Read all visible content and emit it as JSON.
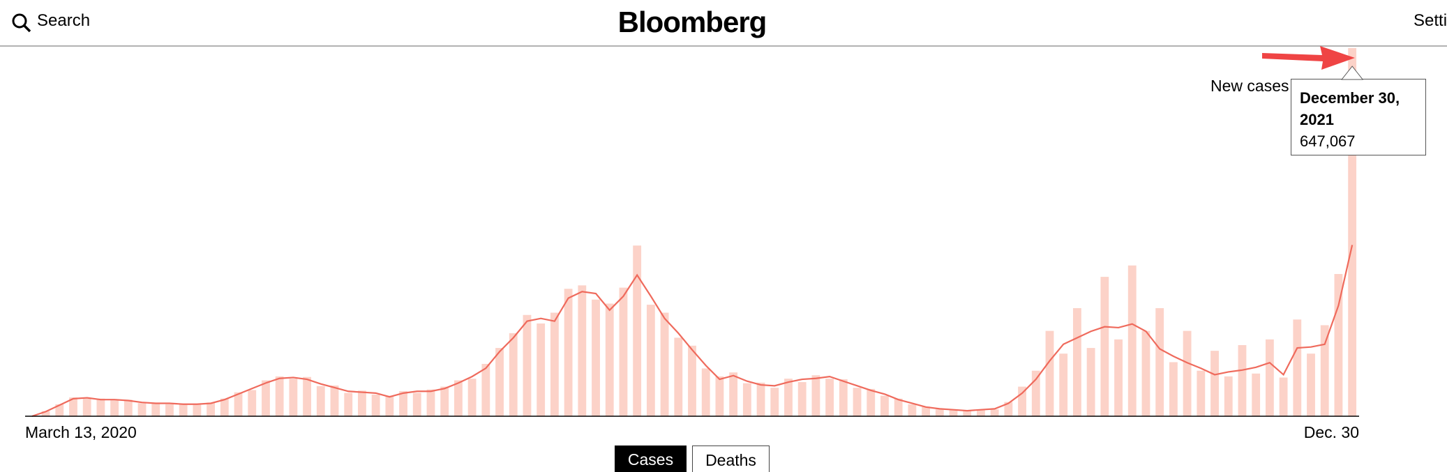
{
  "header": {
    "search": "Search",
    "logo": "Bloomberg",
    "settings": "Settings"
  },
  "chart_data": {
    "type": "bar",
    "categories": [
      "March 13, 2020",
      null,
      null,
      null,
      null,
      null,
      null,
      null,
      null,
      null,
      null,
      null,
      null,
      null,
      null,
      null,
      null,
      null,
      null,
      null,
      null,
      null,
      null,
      null,
      null,
      null,
      null,
      null,
      null,
      null,
      null,
      null,
      null,
      null,
      null,
      null,
      null,
      null,
      null,
      null,
      null,
      null,
      null,
      null,
      null,
      null,
      null,
      null,
      null,
      null,
      null,
      null,
      null,
      null,
      null,
      null,
      null,
      null,
      null,
      null,
      null,
      null,
      null,
      null,
      null,
      null,
      null,
      null,
      null,
      null,
      null,
      null,
      null,
      null,
      null,
      null,
      null,
      null,
      null,
      null,
      null,
      null,
      null,
      null,
      null,
      null,
      null,
      null,
      null,
      null,
      null,
      null,
      null,
      null,
      null,
      null,
      "Dec. 30"
    ],
    "series": [
      {
        "name": "New cases",
        "color": "#fcd2c8",
        "values": [
          0,
          9000,
          21000,
          33000,
          31000,
          31000,
          28000,
          29000,
          23000,
          24000,
          21000,
          22000,
          20000,
          24000,
          31000,
          42000,
          46000,
          63000,
          70000,
          66000,
          69000,
          53000,
          54000,
          41000,
          45000,
          38000,
          36000,
          44000,
          41000,
          47000,
          52000,
          63000,
          66000,
          92000,
          120000,
          146000,
          178000,
          163000,
          182000,
          224000,
          230000,
          205000,
          198000,
          226000,
          300000,
          196000,
          182000,
          138000,
          124000,
          84000,
          70000,
          77000,
          58000,
          59000,
          50000,
          66000,
          60000,
          72000,
          66000,
          65000,
          50000,
          48000,
          36000,
          31000,
          21000,
          17000,
          12000,
          12000,
          9000,
          12000,
          12000,
          25000,
          52000,
          80000,
          150000,
          110000,
          190000,
          120000,
          245000,
          135000,
          265000,
          150000,
          190000,
          95000,
          150000,
          80000,
          115000,
          70000,
          125000,
          75000,
          135000,
          68000,
          170000,
          110000,
          160000,
          250000,
          647067
        ]
      },
      {
        "type": "line",
        "color": "#ef6a5c",
        "values": [
          0,
          8100,
          19500,
          30800,
          32400,
          29200,
          29200,
          27600,
          24300,
          22700,
          22700,
          21100,
          21100,
          22700,
          29200,
          38900,
          48700,
          58400,
          66500,
          68100,
          64900,
          56800,
          50300,
          43800,
          42200,
          40600,
          34100,
          40600,
          43800,
          43800,
          48700,
          58400,
          69700,
          84300,
          113500,
          137900,
          167100,
          171900,
          167100,
          207600,
          219000,
          215700,
          186500,
          210900,
          248200,
          210900,
          171900,
          146000,
          116800,
          89200,
          64900,
          71400,
          61600,
          55100,
          53500,
          60000,
          64900,
          66500,
          69700,
          61600,
          53500,
          45400,
          38900,
          29200,
          22700,
          16200,
          13000,
          11400,
          9700,
          11400,
          13000,
          22700,
          40600,
          64900,
          97300,
          126500,
          137900,
          149200,
          157300,
          155700,
          162200,
          149200,
          118400,
          105400,
          94100,
          84300,
          73000,
          77900,
          81100,
          86000,
          94100,
          73000,
          120000,
          121700,
          126500,
          194600,
          301000
        ]
      }
    ],
    "tooltip": {
      "title": "December 30, 2021",
      "value": 647067,
      "value_label": "647,067"
    }
  },
  "toggle": {
    "options": [
      "Cases",
      "Deaths"
    ],
    "active_index": 0
  }
}
